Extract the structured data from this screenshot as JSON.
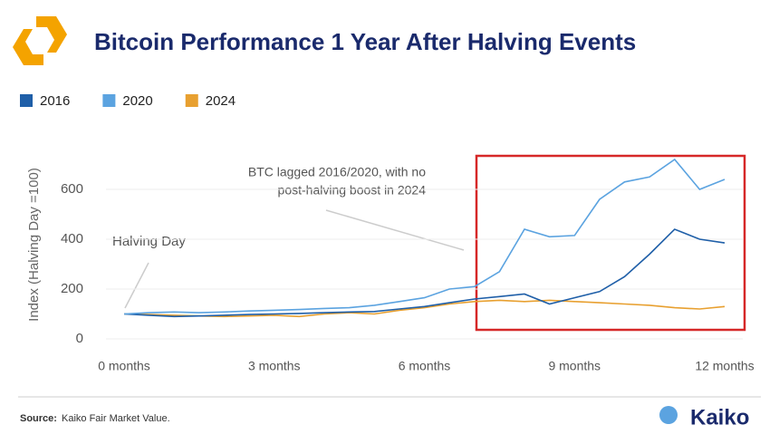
{
  "chart_data": {
    "type": "line",
    "title": "Bitcoin Performance 1 Year After Halving Events",
    "y_label": "Index (Halving Day =100)",
    "legend": "top-left",
    "grid": true,
    "x": [
      0,
      0.5,
      1,
      1.5,
      2,
      2.5,
      3,
      3.5,
      4,
      4.5,
      5,
      5.5,
      6,
      6.5,
      7,
      7.5,
      8,
      8.5,
      9,
      9.5,
      10,
      10.5,
      11,
      11.5,
      12
    ],
    "xlim": [
      0,
      12
    ],
    "xticks": [
      {
        "value": 0,
        "label": "0 months"
      },
      {
        "value": 3,
        "label": "3 months"
      },
      {
        "value": 6,
        "label": "6 months"
      },
      {
        "value": 9,
        "label": "9 months"
      },
      {
        "value": 12,
        "label": "12 months"
      }
    ],
    "ylim": [
      0,
      720
    ],
    "yticks": [
      0,
      200,
      400,
      600
    ],
    "series": [
      {
        "name": "2016",
        "color": "#1f5fa8",
        "values": [
          100,
          95,
          90,
          92,
          95,
          98,
          100,
          102,
          105,
          108,
          110,
          120,
          130,
          145,
          160,
          170,
          180,
          140,
          165,
          190,
          250,
          340,
          440,
          400,
          385
        ]
      },
      {
        "name": "2020",
        "color": "#5ba3e0",
        "values": [
          100,
          105,
          108,
          105,
          108,
          112,
          115,
          118,
          122,
          125,
          135,
          150,
          165,
          200,
          210,
          270,
          440,
          410,
          415,
          560,
          630,
          650,
          720,
          600,
          640
        ]
      },
      {
        "name": "2024",
        "color": "#e8a030",
        "values": [
          100,
          98,
          95,
          92,
          90,
          92,
          95,
          90,
          100,
          105,
          100,
          115,
          125,
          140,
          150,
          155,
          150,
          155,
          150,
          145,
          140,
          135,
          125,
          120,
          130
        ]
      }
    ],
    "annotations": [
      "Halving Day",
      "BTC lagged 2016/2020, with no",
      "post-halving boost in 2024"
    ],
    "source_label": "Source:",
    "source": "Kaiko Fair Market Value.",
    "logo_text": "Kaiko"
  }
}
